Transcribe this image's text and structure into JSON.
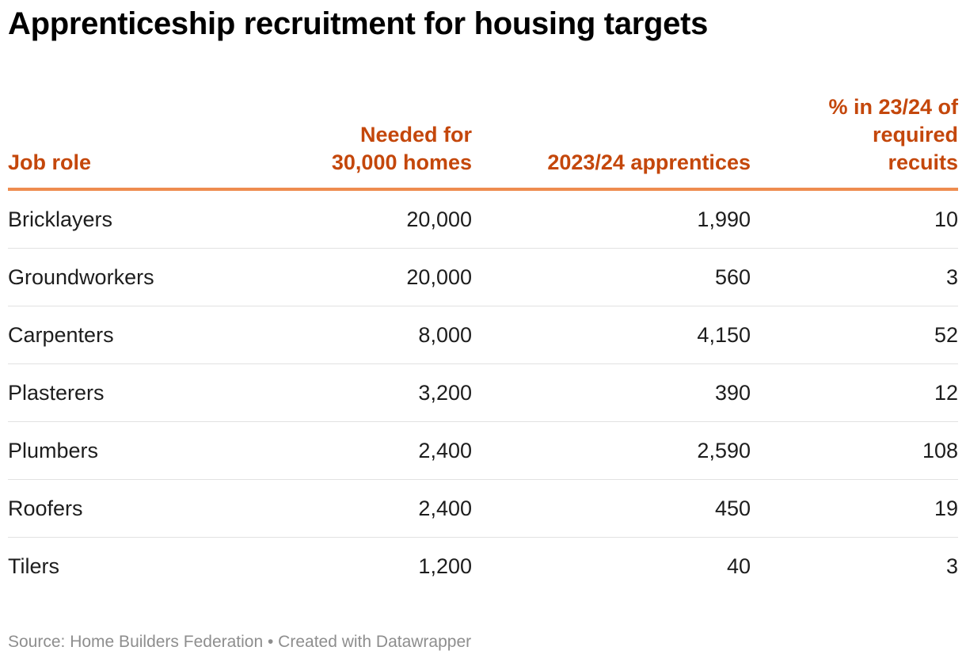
{
  "chart_data": {
    "type": "table",
    "title": "Apprenticeship recruitment for housing targets",
    "columns": [
      {
        "key": "role",
        "lines": [
          "Job role"
        ]
      },
      {
        "key": "needed",
        "lines": [
          "Needed for",
          "30,000 homes"
        ]
      },
      {
        "key": "apprentices",
        "lines": [
          "2023/24 apprentices"
        ]
      },
      {
        "key": "pct",
        "lines": [
          "% in 23/24 of",
          "required",
          "recuits"
        ]
      }
    ],
    "rows": [
      {
        "role": "Bricklayers",
        "needed": "20,000",
        "apprentices": "1,990",
        "pct": "10"
      },
      {
        "role": "Groundworkers",
        "needed": "20,000",
        "apprentices": "560",
        "pct": "3"
      },
      {
        "role": "Carpenters",
        "needed": "8,000",
        "apprentices": "4,150",
        "pct": "52"
      },
      {
        "role": "Plasterers",
        "needed": "3,200",
        "apprentices": "390",
        "pct": "12"
      },
      {
        "role": "Plumbers",
        "needed": "2,400",
        "apprentices": "2,590",
        "pct": "108"
      },
      {
        "role": "Roofers",
        "needed": "2,400",
        "apprentices": "450",
        "pct": "19"
      },
      {
        "role": "Tilers",
        "needed": "1,200",
        "apprentices": "40",
        "pct": "3"
      }
    ],
    "source": "Source: Home Builders Federation • Created with Datawrapper",
    "header_color": "#c4470b",
    "header_rule_color": "#ee8c4f",
    "row_rule_color": "#e2e2e2",
    "footer_color": "#8e8e8e"
  }
}
